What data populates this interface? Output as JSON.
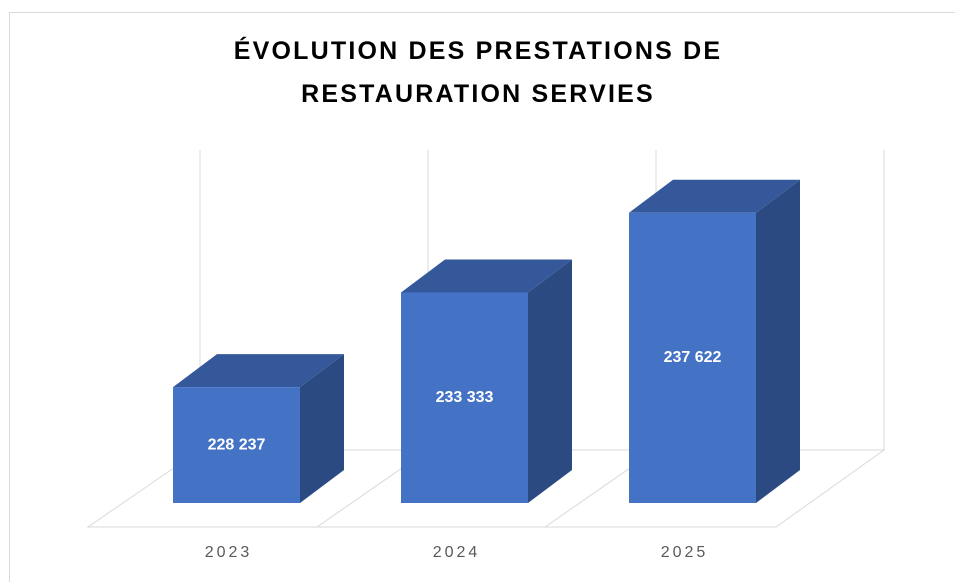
{
  "chart_data": {
    "type": "bar3d",
    "title": "ÉVOLUTION DES PRESTATIONS DE RESTAURATION SERVIES",
    "categories": [
      "2023",
      "2024",
      "2025"
    ],
    "values": [
      228237,
      233333,
      237622
    ],
    "value_labels": [
      "228 237",
      "233 333",
      "237 622"
    ],
    "color": "#4472c4",
    "ylim": [
      222000,
      241000
    ]
  }
}
